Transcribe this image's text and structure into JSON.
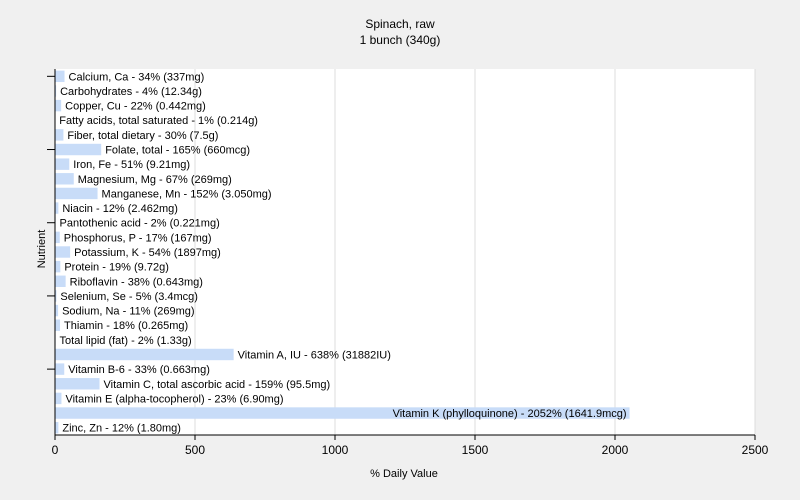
{
  "chart_data": {
    "type": "bar",
    "orientation": "horizontal",
    "title": "Spinach, raw",
    "subtitle": "1 bunch (340g)",
    "xlabel": "% Daily Value",
    "ylabel": "Nutrient",
    "xlim": [
      0,
      2500
    ],
    "xticks": [
      0,
      500,
      1000,
      1500,
      2000,
      2500
    ],
    "grid": true,
    "bar_color": "#c8dcf8",
    "background": "#f0f0f0",
    "plot_background": "#ffffff",
    "categories": [
      "Calcium, Ca - 34% (337mg)",
      "Carbohydrates - 4% (12.34g)",
      "Copper, Cu - 22% (0.442mg)",
      "Fatty acids, total saturated - 1% (0.214g)",
      "Fiber, total dietary - 30% (7.5g)",
      "Folate, total - 165% (660mcg)",
      "Iron, Fe - 51% (9.21mg)",
      "Magnesium, Mg - 67% (269mg)",
      "Manganese, Mn - 152% (3.050mg)",
      "Niacin - 12% (2.462mg)",
      "Pantothenic acid - 2% (0.221mg)",
      "Phosphorus, P - 17% (167mg)",
      "Potassium, K - 54% (1897mg)",
      "Protein - 19% (9.72g)",
      "Riboflavin - 38% (0.643mg)",
      "Selenium, Se - 5% (3.4mcg)",
      "Sodium, Na - 11% (269mg)",
      "Thiamin - 18% (0.265mg)",
      "Total lipid (fat) - 2% (1.33g)",
      "Vitamin A, IU - 638% (31882IU)",
      "Vitamin B-6 - 33% (0.663mg)",
      "Vitamin C, total ascorbic acid - 159% (95.5mg)",
      "Vitamin E (alpha-tocopherol) - 23% (6.90mg)",
      "Vitamin K (phylloquinone) - 2052% (1641.9mcg)",
      "Zinc, Zn - 12% (1.80mg)"
    ],
    "values": [
      34,
      4,
      22,
      1,
      30,
      165,
      51,
      67,
      152,
      12,
      2,
      17,
      54,
      19,
      38,
      5,
      11,
      18,
      2,
      638,
      33,
      159,
      23,
      2052,
      12
    ]
  }
}
